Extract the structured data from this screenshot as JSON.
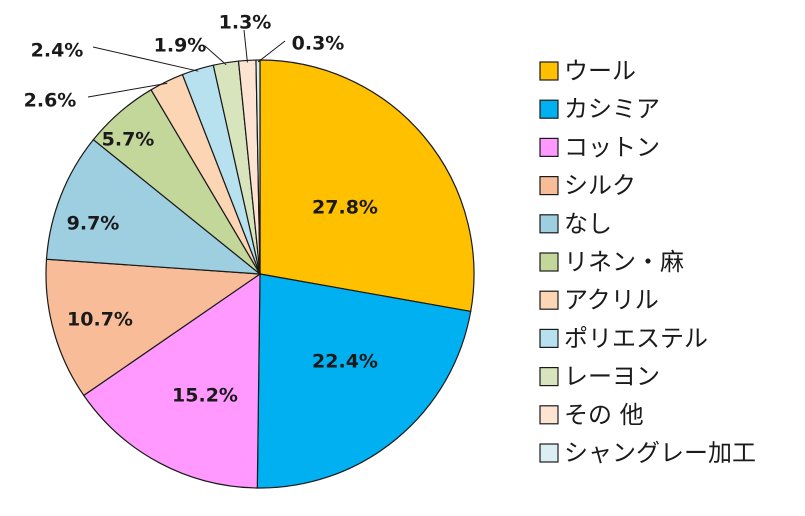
{
  "chart_data": {
    "type": "pie",
    "legend_position": "right",
    "slices": [
      {
        "label": "ウール",
        "value": 27.8,
        "value_label": "27.8%",
        "color": "#FFC000"
      },
      {
        "label": "カシミア",
        "value": 22.4,
        "value_label": "22.4%",
        "color": "#00B0F0"
      },
      {
        "label": "コットン",
        "value": 15.2,
        "value_label": "15.2%",
        "color": "#FF99FF"
      },
      {
        "label": "シルク",
        "value": 10.7,
        "value_label": "10.7%",
        "color": "#F8BD98"
      },
      {
        "label": "なし",
        "value": 9.7,
        "value_label": "9.7%",
        "color": "#9DCFE0"
      },
      {
        "label": "リネン・麻",
        "value": 5.7,
        "value_label": "5.7%",
        "color": "#C4D79B"
      },
      {
        "label": "アクリル",
        "value": 2.6,
        "value_label": "2.6%",
        "color": "#FCD5B4"
      },
      {
        "label": "ポリエステル",
        "value": 2.4,
        "value_label": "2.4%",
        "color": "#B7E1EE"
      },
      {
        "label": "レーヨン",
        "value": 1.9,
        "value_label": "1.9%",
        "color": "#D8E4BC"
      },
      {
        "label": "その 他",
        "value": 1.3,
        "value_label": "1.3%",
        "color": "#FDE4D2"
      },
      {
        "label": "シャングレー加工",
        "value": 0.3,
        "value_label": "0.3%",
        "color": "#DAEEF3"
      }
    ]
  }
}
